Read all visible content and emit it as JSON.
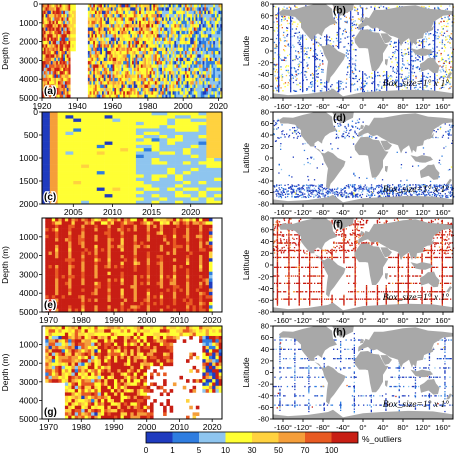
{
  "colors": {
    "bins": [
      "#1f3bbf",
      "#2f7de0",
      "#8ec5ef",
      "#ffff33",
      "#ffd23f",
      "#f59e3a",
      "#e85a22",
      "#c81e14"
    ],
    "ocean": "#ffffff",
    "land": "#a8a8a8",
    "frame": "#000000"
  },
  "colorbar": {
    "ticks": [
      "0",
      "1",
      "5",
      "10",
      "30",
      "50",
      "70",
      "100"
    ],
    "label": "%_outliers"
  },
  "chart_data": [
    {
      "type": "heatmap",
      "panel": "a",
      "xlim": [
        1920,
        2022
      ],
      "xticks": [
        1920,
        1940,
        1960,
        1980,
        2000,
        2020
      ],
      "ylim": [
        5000,
        0
      ],
      "yticks": [
        0,
        1000,
        2000,
        3000,
        4000,
        5000
      ],
      "ylabel": "Depth (m)",
      "fill_pattern": "1920-1935 mostly red/orange; 1936-1945 gap (white); 1945-1985 yellow with orange/red patches; 1985-2010 mixed yellow/blue; 2010-2020 mostly light blue",
      "value_range_pct": [
        0,
        100
      ]
    },
    {
      "type": "scatter",
      "panel": "b",
      "xlim": [
        -180,
        180
      ],
      "xticks": [
        "-160°",
        "-120°",
        "-80°",
        "-40°",
        "0°",
        "40°",
        "80°",
        "120°",
        "160°"
      ],
      "ylim": [
        -80,
        80
      ],
      "yticks": [
        -80,
        -60,
        -40,
        -20,
        0,
        20,
        40,
        60,
        80
      ],
      "ylabel": "Latitude",
      "annotation": "Box_size=1° x 1°",
      "distribution": "dense blue/light-blue coverage globally with yellow/orange points in coastal and northern regions"
    },
    {
      "type": "heatmap",
      "panel": "c",
      "xlim": [
        2001,
        2024
      ],
      "xticks": [
        2005,
        2010,
        2015,
        2020
      ],
      "ylim": [
        2000,
        0
      ],
      "yticks": [
        0,
        500,
        1000,
        1500,
        2000
      ],
      "fill_pattern": "2001-2003 blue/orange columns; 2003-2013 mostly yellow; 2013-2022 light blue with yellow patches",
      "value_range_pct": [
        0,
        100
      ]
    },
    {
      "type": "scatter",
      "panel": "d",
      "xlim": [
        -180,
        180
      ],
      "xticks": [
        "-160°",
        "-120°",
        "-80°",
        "-40°",
        "0°",
        "40°",
        "80°",
        "120°",
        "160°"
      ],
      "ylim": [
        -80,
        80
      ],
      "yticks": [
        -80,
        -60,
        -40,
        -20,
        0,
        20,
        40,
        60,
        80
      ],
      "ylabel": "Latitude",
      "annotation": "Box_size=1° x 1°",
      "distribution": "blue points concentrated in Southern Ocean and north Atlantic/Pacific margins"
    },
    {
      "type": "heatmap",
      "panel": "e",
      "xlim": [
        1968,
        2023
      ],
      "xticks": [
        1970,
        1980,
        1990,
        2000,
        2010,
        2020
      ],
      "ylim": [
        5000,
        0
      ],
      "yticks": [
        1000,
        2000,
        3000,
        4000,
        5000
      ],
      "ylabel": "Depth (m)",
      "fill_pattern": "almost entirely red with orange vertical stripes; yellow/blue near 2019-2020",
      "value_range_pct": [
        0,
        100
      ]
    },
    {
      "type": "scatter",
      "panel": "f",
      "xlim": [
        -180,
        180
      ],
      "xticks": [
        "-160°",
        "-120°",
        "-80°",
        "-40°",
        "0°",
        "40°",
        "80°",
        "120°",
        "160°"
      ],
      "ylim": [
        -80,
        80
      ],
      "yticks": [
        -80,
        -60,
        -40,
        -20,
        0,
        20,
        40,
        60,
        80
      ],
      "ylabel": "Latitude",
      "annotation": "Box_size=1° x 1°",
      "distribution": "red cruise tracks and coastal points across all oceans"
    },
    {
      "type": "heatmap",
      "panel": "g",
      "xlim": [
        1968,
        2023
      ],
      "xticks": [
        1970,
        1980,
        1990,
        2000,
        2010,
        2020
      ],
      "ylim": [
        5000,
        0
      ],
      "yticks": [
        1000,
        2000,
        3000,
        4000,
        5000
      ],
      "ylabel": "Depth (m)",
      "fill_pattern": "1970-1985 mixed yellow/orange/red with white gaps; 1985-2000 red/yellow; 2000-2018 mostly white with scattered red/orange; near-surface yellow band",
      "value_range_pct": [
        0,
        100
      ]
    },
    {
      "type": "scatter",
      "panel": "h",
      "xlim": [
        -180,
        180
      ],
      "xticks": [
        "-160°",
        "-120°",
        "-80°",
        "-40°",
        "0°",
        "40°",
        "80°",
        "120°",
        "160°"
      ],
      "ylim": [
        -80,
        80
      ],
      "yticks": [
        -80,
        -60,
        -40,
        -20,
        0,
        20,
        40,
        60,
        80
      ],
      "ylabel": "Latitude",
      "annotation": "Box_size=1° x 1°",
      "distribution": "sparse blue cruise tracks; few orange/red points"
    }
  ]
}
